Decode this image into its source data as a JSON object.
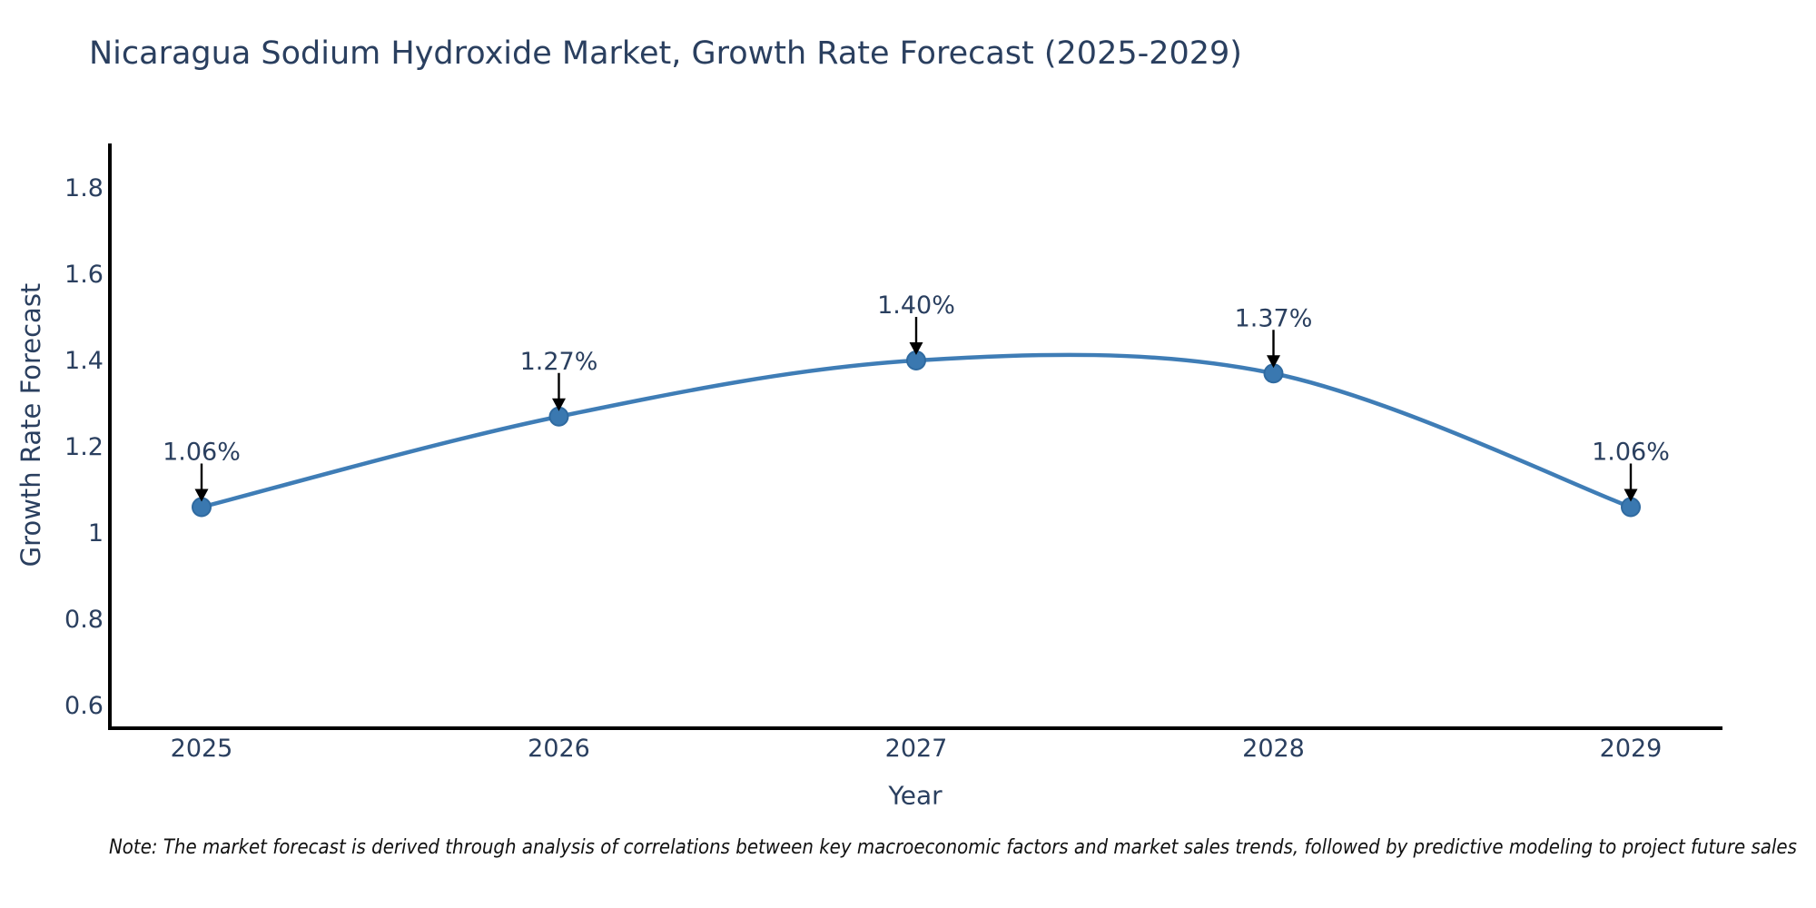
{
  "chart_data": {
    "type": "line",
    "title": "Nicaragua Sodium Hydroxide Market, Growth Rate Forecast (2025-2029)",
    "xlabel": "Year",
    "ylabel": "Growth Rate Forecast",
    "categories": [
      "2025",
      "2026",
      "2027",
      "2028",
      "2029"
    ],
    "values": [
      1.06,
      1.27,
      1.4,
      1.37,
      1.06
    ],
    "point_labels": [
      "1.06%",
      "1.27%",
      "1.40%",
      "1.37%",
      "1.06%"
    ],
    "series": [
      {
        "name": "Growth Rate Forecast",
        "values": [
          1.06,
          1.27,
          1.4,
          1.37,
          1.06
        ]
      }
    ],
    "yticks": [
      0.6,
      0.8,
      1.0,
      1.2,
      1.4,
      1.6,
      1.8
    ],
    "ytick_labels": [
      "0.6",
      "0.8",
      "1",
      "1.2",
      "1.4",
      "1.6",
      "1.8"
    ],
    "ylim": [
      0.54,
      1.9
    ],
    "line_shape": "spline",
    "grid": false,
    "legend_position": "none",
    "annotations_style": "value label with black arrow pointing down at each marker",
    "colors": {
      "line": "#3f7db6",
      "marker": "#3a78b0",
      "marker_edge": "#2f6aa0",
      "axis_line": "#000000",
      "text": "#2a3f5f",
      "annotation_arrow": "#000000",
      "note_text": "#111111",
      "background": "#ffffff"
    },
    "note": "Note: The market forecast is derived through analysis of correlations between key macroeconomic factors and market sales trends, followed by predictive modeling to project future sales"
  }
}
